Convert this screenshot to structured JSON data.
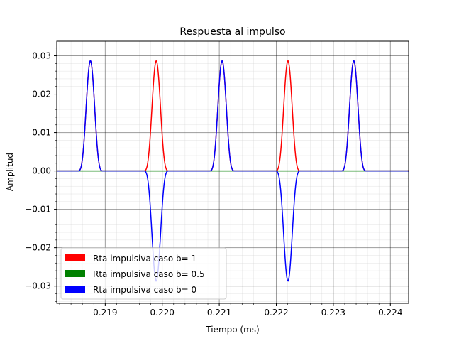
{
  "chart_data": {
    "type": "line",
    "title": "Respuesta al impulso",
    "xlabel": "Tiempo (ms)",
    "ylabel": "Amplitud",
    "xlim": [
      0.21815,
      0.22432
    ],
    "ylim": [
      -0.0345,
      0.0338
    ],
    "x_ticks": [
      0.219,
      0.22,
      0.221,
      0.222,
      0.223,
      0.224
    ],
    "x_tick_labels": [
      "0.219",
      "0.220",
      "0.221",
      "0.222",
      "0.223",
      "0.224"
    ],
    "y_ticks": [
      -0.03,
      -0.02,
      -0.01,
      0.0,
      0.01,
      0.02,
      0.03
    ],
    "y_tick_labels": [
      "−0.03",
      "−0.02",
      "−0.01",
      "0.00",
      "0.01",
      "0.02",
      "0.03"
    ],
    "grid": "major and minor",
    "legend_position": "lower-left",
    "pulse": {
      "amplitude": 0.0287,
      "period": 0.0011547,
      "first_peak": 0.21874,
      "width": 0.00023
    },
    "series": [
      {
        "name": "Rta impulsiva caso b= 1",
        "color": "#ff0000",
        "peak_signs": [
          1,
          1,
          1,
          1,
          1,
          1
        ]
      },
      {
        "name": "Rta impulsiva caso b= 0.5",
        "color": "#008000",
        "peak_signs": [
          0,
          0,
          0,
          0,
          0,
          0
        ]
      },
      {
        "name": "Rta impulsiva caso b= 0",
        "color": "#0000ff",
        "peak_signs": [
          1,
          -1,
          1,
          -1,
          1,
          -1
        ]
      }
    ]
  }
}
